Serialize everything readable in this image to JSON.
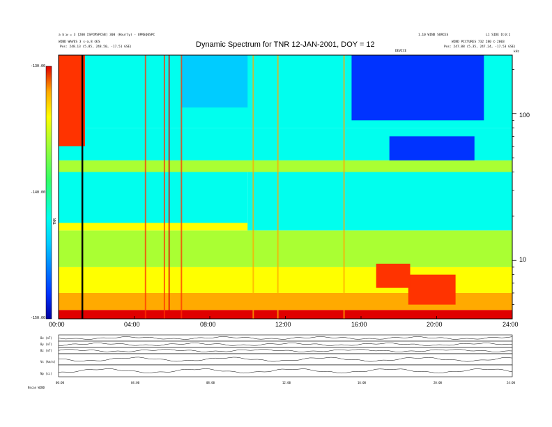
{
  "header": {
    "top_left_line1": "a b:w = 3 [200 ISPCMSPCSB] 300 (Hourly) - UPNSQ0SPC",
    "top_left_line2": "WIND WAVES 3 s-a.8 ©ES",
    "top_left_line3": "Pos:    248.13 (5.85, 248.50, -17.51 GSE)",
    "top_right_line1": "1.10 WIND SURCES",
    "top_right_line2": "L1 SIDE D:0:1",
    "top_right_line3": "WIND PICTURES 732 280 © 2003",
    "top_right_line4": "Pos:    247.88 (5.35, 247.24, -17.53 GSE)",
    "small_center": "DEVICE",
    "khz_label": "kHz"
  },
  "chart_data": {
    "type": "heatmap",
    "title": "Dynamic Spectrum for TNR 12-JAN-2001, DOY = 12",
    "x_tick_labels": [
      "00:00",
      "04:00",
      "08:00",
      "12:00",
      "16:00",
      "20:00",
      "24:00"
    ],
    "x_range_hours": [
      0,
      24
    ],
    "y_scale": "log",
    "y_tick_labels": [
      "100",
      "10"
    ],
    "y_range_khz": [
      4,
      250
    ],
    "colorbar": {
      "tick_labels": [
        "-130.00",
        "-140.00",
        "-150.00"
      ],
      "range": [
        -150,
        -130
      ],
      "label": "TNR",
      "colors": [
        "#0000a0",
        "#0033ff",
        "#00ccff",
        "#00ffee",
        "#33ff66",
        "#aaff33",
        "#ffff00",
        "#ffaa00",
        "#ff3300",
        "#e00000"
      ]
    },
    "bands": [
      {
        "from_hour": 0.0,
        "to_hour": 24.0,
        "low_khz": 4.0,
        "high_khz": 4.6,
        "level": 0.95
      },
      {
        "from_hour": 0.0,
        "to_hour": 24.0,
        "low_khz": 4.6,
        "high_khz": 6.0,
        "level": 0.78
      },
      {
        "from_hour": 0.0,
        "to_hour": 24.0,
        "low_khz": 6.0,
        "high_khz": 9.0,
        "level": 0.68
      },
      {
        "from_hour": 0.0,
        "to_hour": 24.0,
        "low_khz": 9.0,
        "high_khz": 16.0,
        "level": 0.55
      },
      {
        "from_hour": 0.0,
        "to_hour": 10.5,
        "low_khz": 16.0,
        "high_khz": 18.0,
        "level": 0.72
      },
      {
        "from_hour": 0.0,
        "to_hour": 10.0,
        "low_khz": 18.0,
        "high_khz": 40.0,
        "level": 0.36
      },
      {
        "from_hour": 10.0,
        "to_hour": 24.0,
        "low_khz": 16.0,
        "high_khz": 40.0,
        "level": 0.3
      },
      {
        "from_hour": 0.0,
        "to_hour": 24.0,
        "low_khz": 40.0,
        "high_khz": 48.0,
        "level": 0.5
      },
      {
        "from_hour": 0.0,
        "to_hour": 24.0,
        "low_khz": 48.0,
        "high_khz": 80.0,
        "level": 0.38
      },
      {
        "from_hour": 0.0,
        "to_hour": 24.0,
        "low_khz": 80.0,
        "high_khz": 250.0,
        "level": 0.32
      },
      {
        "from_hour": 15.5,
        "to_hour": 22.5,
        "low_khz": 90.0,
        "high_khz": 250.0,
        "level": 0.15
      },
      {
        "from_hour": 6.5,
        "to_hour": 10.0,
        "low_khz": 110.0,
        "high_khz": 250.0,
        "level": 0.18
      },
      {
        "from_hour": 17.5,
        "to_hour": 22.0,
        "low_khz": 48.0,
        "high_khz": 70.0,
        "level": 0.12
      },
      {
        "from_hour": 0.0,
        "to_hour": 1.4,
        "low_khz": 60.0,
        "high_khz": 250.0,
        "level": 0.88
      },
      {
        "from_hour": 18.5,
        "to_hour": 21.0,
        "low_khz": 5.0,
        "high_khz": 8.0,
        "level": 0.9
      },
      {
        "from_hour": 16.8,
        "to_hour": 18.6,
        "low_khz": 6.5,
        "high_khz": 9.5,
        "level": 0.86
      }
    ],
    "spikes": [
      {
        "hour": 1.25,
        "level": 1.0
      },
      {
        "hour": 4.6,
        "level": 0.9
      },
      {
        "hour": 5.6,
        "level": 0.92
      },
      {
        "hour": 5.85,
        "level": 0.95
      },
      {
        "hour": 6.5,
        "level": 0.85
      },
      {
        "hour": 10.3,
        "level": 0.8
      },
      {
        "hour": 11.6,
        "level": 0.78
      },
      {
        "hour": 15.1,
        "level": 0.75
      }
    ],
    "bottom_panels": {
      "labels": [
        "Bx (nT)",
        "By (nT)",
        "Bz (nT)",
        "Vx (km/s)",
        "Np (cc)"
      ],
      "x_tick_labels": [
        "00:00",
        "04:00",
        "08:00",
        "12:00",
        "16:00",
        "20:00",
        "24:00"
      ],
      "footer_label": "Nscan   WIND"
    }
  }
}
